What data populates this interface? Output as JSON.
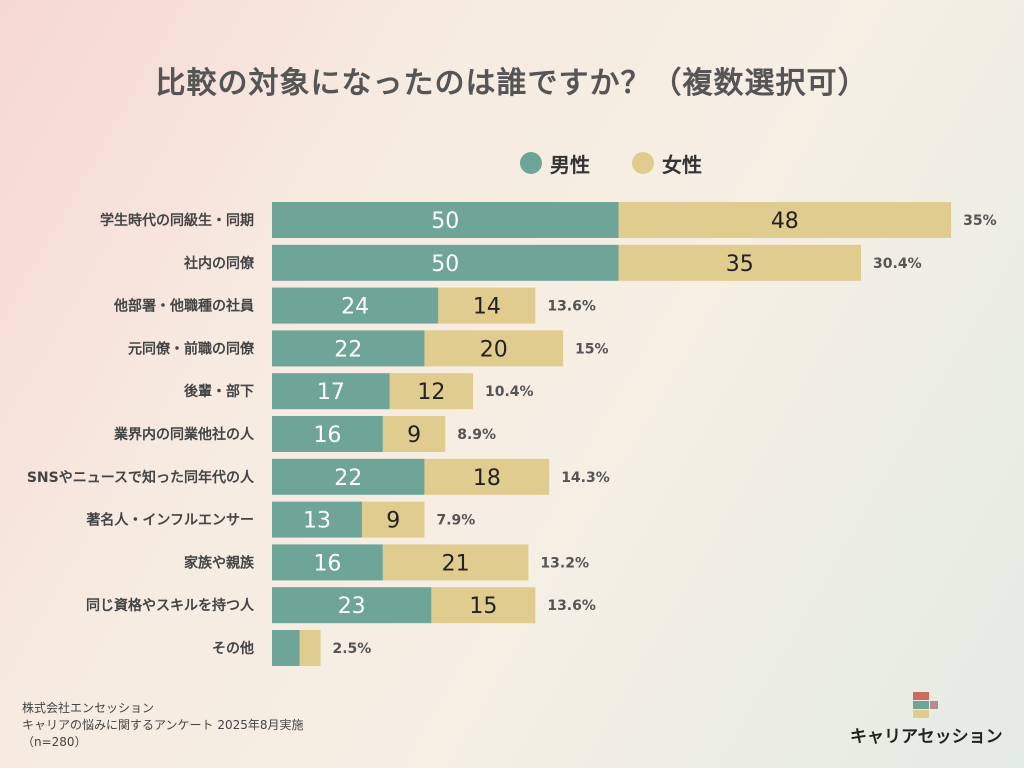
{
  "colors": {
    "male": "#6fa598",
    "female": "#e1cc8f"
  },
  "legend": {
    "male": "男性",
    "female": "女性"
  },
  "chart_data": {
    "type": "bar",
    "orientation": "horizontal",
    "stacked": true,
    "title": "比較の対象になったのは誰ですか？（複数選択可）",
    "categories": [
      "学生時代の同級生・同期",
      "社内の同僚",
      "他部署・他職種の社員",
      "元同僚・前職の同僚",
      "後輩・部下",
      "業界内の同業他社の人",
      "SNSやニュースで知った同年代の人",
      "著名人・インフルエンサー",
      "家族や親族",
      "同じ資格やスキルを持つ人",
      "その他"
    ],
    "series": [
      {
        "name": "男性",
        "values": [
          50,
          50,
          24,
          22,
          17,
          16,
          22,
          13,
          16,
          23,
          4
        ],
        "labels": [
          "50",
          "50",
          "24",
          "22",
          "17",
          "16",
          "22",
          "13",
          "16",
          "23",
          ""
        ]
      },
      {
        "name": "女性",
        "values": [
          48,
          35,
          14,
          20,
          12,
          9,
          18,
          9,
          21,
          15,
          3
        ],
        "labels": [
          "48",
          "35",
          "14",
          "20",
          "12",
          "9",
          "18",
          "9",
          "21",
          "15",
          ""
        ]
      }
    ],
    "percentages": [
      "35%",
      "30.4%",
      "13.6%",
      "15%",
      "10.4%",
      "8.9%",
      "14.3%",
      "7.9%",
      "13.2%",
      "13.6%",
      "2.5%"
    ],
    "legend_position": "top",
    "grid": false
  },
  "source": {
    "line1": "株式会社エンセッション",
    "line2": "キャリアの悩みに関するアンケート 2025年8月実施",
    "line3": "（n=280）"
  },
  "logo": {
    "text": "キャリアセッション"
  }
}
